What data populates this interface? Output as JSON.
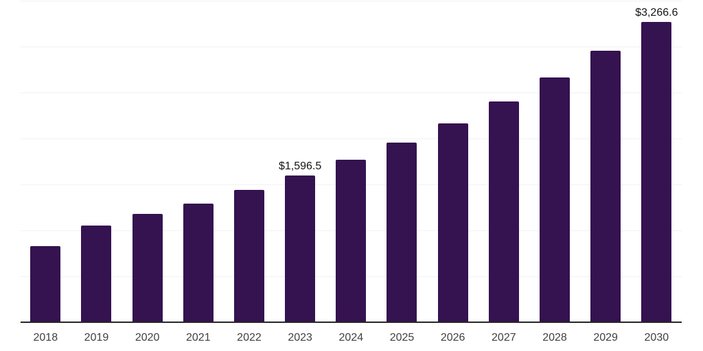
{
  "chart_data": {
    "type": "bar",
    "title": "",
    "xlabel": "",
    "ylabel": "",
    "categories": [
      "2018",
      "2019",
      "2020",
      "2021",
      "2022",
      "2023",
      "2024",
      "2025",
      "2026",
      "2027",
      "2028",
      "2029",
      "2030"
    ],
    "values": [
      828,
      1052,
      1179,
      1291,
      1440,
      1596.5,
      1765,
      1955,
      2164,
      2403,
      2664,
      2955,
      3266.6
    ],
    "data_labels": [
      "",
      "",
      "",
      "",
      "",
      "$1,596.5",
      "",
      "",
      "",
      "",
      "",
      "",
      "$3,266.6"
    ],
    "ylim": [
      0,
      3500
    ],
    "grid_step": 500,
    "grid": true,
    "legend": false,
    "y_tick_labels_visible": false,
    "colors": {
      "bar": "#351250",
      "gridline": "#f2f2f2",
      "axis_line": "#262626",
      "x_tick_label": "#404040",
      "data_label": "#141414",
      "background": "#ffffff"
    }
  }
}
